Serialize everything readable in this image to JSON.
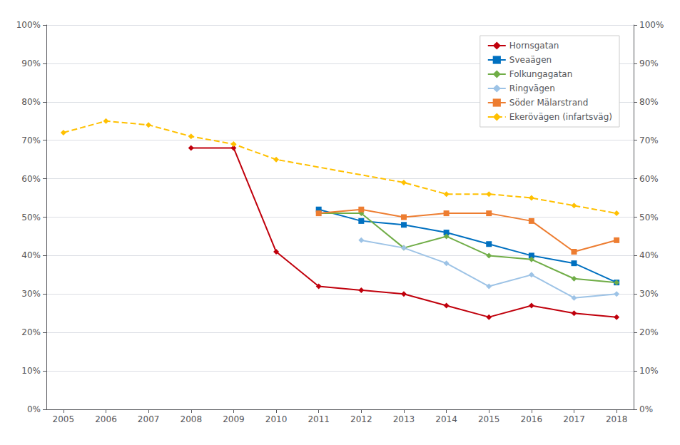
{
  "chart_data": {
    "type": "line",
    "x": [
      2005,
      2006,
      2007,
      2008,
      2009,
      2010,
      2011,
      2012,
      2013,
      2014,
      2015,
      2016,
      2017,
      2018
    ],
    "xlim": [
      2004.6,
      2018.4
    ],
    "xticks": [
      2005,
      2006,
      2007,
      2008,
      2009,
      2010,
      2011,
      2012,
      2013,
      2014,
      2015,
      2016,
      2017,
      2018
    ],
    "ylim": [
      0,
      1.0
    ],
    "yticks": [
      {
        "value": 0,
        "label": "0%"
      },
      {
        "value": 0.1,
        "label": "10%"
      },
      {
        "value": 0.2,
        "label": "20%"
      },
      {
        "value": 0.3,
        "label": "30%"
      },
      {
        "value": 0.4,
        "label": "40%"
      },
      {
        "value": 0.5,
        "label": "50%"
      },
      {
        "value": 0.6,
        "label": "60%"
      },
      {
        "value": 0.7,
        "label": "70%"
      },
      {
        "value": 0.8,
        "label": "80%"
      },
      {
        "value": 0.9,
        "label": "90%"
      },
      {
        "value": 1.0,
        "label": "100%"
      }
    ],
    "y2lim": [
      0,
      1.0
    ],
    "y2ticks": [
      {
        "value": 0,
        "label": "0%"
      },
      {
        "value": 0.1,
        "label": "10%"
      },
      {
        "value": 0.2,
        "label": "20%"
      },
      {
        "value": 0.3,
        "label": "30%"
      },
      {
        "value": 0.4,
        "label": "40%"
      },
      {
        "value": 0.5,
        "label": "50%"
      },
      {
        "value": 0.6,
        "label": "60%"
      },
      {
        "value": 0.7,
        "label": "70%"
      },
      {
        "value": 0.8,
        "label": "80%"
      },
      {
        "value": 0.9,
        "label": "90%"
      },
      {
        "value": 1.0,
        "label": "100%"
      }
    ],
    "grid": true,
    "legend": "upper right",
    "series": [
      {
        "name": "Hornsgatan",
        "color": "#C0000C",
        "marker": "diamond",
        "line_style": "solid",
        "values": [
          null,
          null,
          null,
          0.68,
          0.68,
          0.41,
          0.32,
          0.31,
          0.3,
          0.27,
          0.24,
          0.27,
          0.25,
          0.24
        ]
      },
      {
        "name": "Sveaägen",
        "color": "#0070C0",
        "marker": "square",
        "line_style": "solid",
        "values": [
          null,
          null,
          null,
          null,
          null,
          null,
          0.52,
          0.49,
          0.48,
          0.46,
          0.43,
          0.4,
          0.38,
          0.33
        ]
      },
      {
        "name": "Folkungagatan",
        "color": "#70AD47",
        "marker": "diamond",
        "line_style": "solid",
        "values": [
          null,
          null,
          null,
          null,
          null,
          null,
          0.51,
          0.51,
          0.42,
          0.45,
          0.4,
          0.39,
          0.34,
          0.33
        ]
      },
      {
        "name": "Ringvägen",
        "color": "#9DC3E6",
        "marker": "diamond",
        "line_style": "solid",
        "values": [
          null,
          null,
          null,
          null,
          null,
          null,
          null,
          0.44,
          0.42,
          0.38,
          0.32,
          0.35,
          0.29,
          0.3
        ]
      },
      {
        "name": "Söder Mälarstrand",
        "color": "#ED7D31",
        "marker": "square",
        "line_style": "solid",
        "values": [
          null,
          null,
          null,
          null,
          null,
          null,
          0.51,
          0.52,
          0.5,
          0.51,
          0.51,
          0.49,
          0.41,
          0.44
        ]
      },
      {
        "name": "Ekerövägen (infartsväg)",
        "color": "#FFC000",
        "marker": "diamond",
        "line_style": "dashed",
        "values": [
          0.72,
          0.75,
          0.74,
          0.71,
          0.69,
          0.65,
          null,
          null,
          0.59,
          0.56,
          0.56,
          0.55,
          0.53,
          0.51
        ]
      }
    ]
  }
}
